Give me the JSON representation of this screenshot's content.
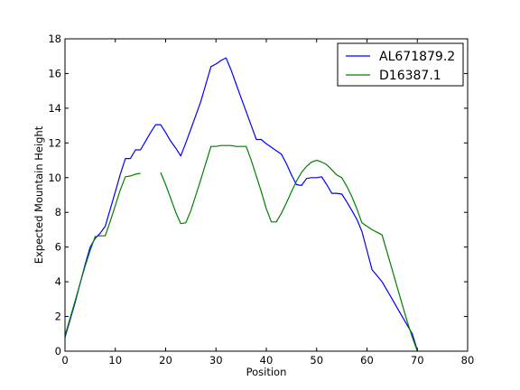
{
  "chart_data": {
    "type": "line",
    "xlabel": "Position",
    "ylabel": "Expected Mountain Height",
    "xlim": [
      0,
      80
    ],
    "ylim": [
      0,
      18
    ],
    "xticks": [
      "0",
      "10",
      "20",
      "30",
      "40",
      "50",
      "60",
      "70",
      "80"
    ],
    "yticks": [
      "0",
      "2",
      "4",
      "6",
      "8",
      "10",
      "12",
      "14",
      "16",
      "18"
    ],
    "grid": false,
    "legend_position": "top-right",
    "series": [
      {
        "name": "AL671879.2",
        "color": "#0000ff",
        "segments": [
          [
            [
              0,
              0.8
            ],
            [
              1,
              1.8
            ],
            [
              2,
              2.8
            ],
            [
              3,
              3.9
            ],
            [
              4,
              5.0
            ],
            [
              5,
              6.0
            ],
            [
              6,
              6.5
            ],
            [
              7,
              6.8
            ],
            [
              8,
              7.2
            ],
            [
              9,
              8.2
            ],
            [
              10,
              9.2
            ],
            [
              11,
              10.2
            ],
            [
              12,
              11.1
            ],
            [
              13,
              11.1
            ],
            [
              14,
              11.6
            ],
            [
              15,
              11.6
            ],
            [
              16,
              12.1
            ],
            [
              17,
              12.6
            ],
            [
              18,
              13.05
            ],
            [
              19,
              13.05
            ],
            [
              20,
              12.6
            ],
            [
              21,
              12.1
            ],
            [
              22,
              11.7
            ],
            [
              23,
              11.25
            ],
            [
              24,
              12.0
            ],
            [
              25,
              12.8
            ],
            [
              26,
              13.6
            ],
            [
              27,
              14.4
            ],
            [
              28,
              15.4
            ],
            [
              29,
              16.4
            ],
            [
              30,
              16.55
            ],
            [
              31,
              16.75
            ],
            [
              32,
              16.9
            ],
            [
              33,
              16.2
            ],
            [
              34,
              15.4
            ],
            [
              35,
              14.6
            ],
            [
              36,
              13.8
            ],
            [
              37,
              13.0
            ],
            [
              38,
              12.2
            ],
            [
              39,
              12.2
            ],
            [
              40,
              11.95
            ],
            [
              41,
              11.75
            ],
            [
              42,
              11.55
            ],
            [
              43,
              11.35
            ],
            [
              44,
              10.8
            ],
            [
              45,
              10.15
            ],
            [
              46,
              9.6
            ],
            [
              47,
              9.55
            ],
            [
              48,
              9.95
            ],
            [
              49,
              10.0
            ],
            [
              50,
              10.0
            ],
            [
              51,
              10.05
            ],
            [
              52,
              9.6
            ],
            [
              53,
              9.1
            ],
            [
              54,
              9.1
            ],
            [
              55,
              9.05
            ],
            [
              56,
              8.6
            ],
            [
              57,
              8.1
            ],
            [
              58,
              7.6
            ],
            [
              59,
              6.9
            ],
            [
              60,
              5.8
            ],
            [
              61,
              4.7
            ],
            [
              62,
              4.35
            ],
            [
              63,
              4.0
            ],
            [
              64,
              3.5
            ],
            [
              65,
              3.0
            ],
            [
              66,
              2.5
            ],
            [
              67,
              2.0
            ],
            [
              68,
              1.5
            ],
            [
              69,
              1.0
            ],
            [
              70,
              0.05
            ]
          ]
        ]
      },
      {
        "name": "D16387.1",
        "color": "#008000",
        "segments": [
          [
            [
              0,
              0.9
            ],
            [
              1,
              1.9
            ],
            [
              2,
              2.9
            ],
            [
              3,
              3.9
            ],
            [
              4,
              4.9
            ],
            [
              5,
              5.8
            ],
            [
              6,
              6.6
            ],
            [
              7,
              6.65
            ],
            [
              8,
              6.65
            ],
            [
              9,
              7.5
            ],
            [
              10,
              8.4
            ],
            [
              11,
              9.3
            ],
            [
              12,
              10.05
            ],
            [
              13,
              10.1
            ],
            [
              14,
              10.2
            ],
            [
              15,
              10.25
            ]
          ],
          [
            [
              19,
              10.3
            ],
            [
              20,
              9.6
            ],
            [
              21,
              8.8
            ],
            [
              22,
              8.0
            ],
            [
              23,
              7.35
            ],
            [
              24,
              7.4
            ],
            [
              25,
              8.1
            ],
            [
              26,
              9.0
            ],
            [
              27,
              9.9
            ],
            [
              28,
              10.85
            ],
            [
              29,
              11.8
            ],
            [
              30,
              11.8
            ],
            [
              31,
              11.85
            ],
            [
              32,
              11.85
            ],
            [
              33,
              11.85
            ],
            [
              34,
              11.8
            ],
            [
              35,
              11.8
            ],
            [
              36,
              11.8
            ],
            [
              37,
              11.0
            ],
            [
              38,
              10.1
            ],
            [
              39,
              9.2
            ],
            [
              40,
              8.2
            ],
            [
              41,
              7.45
            ],
            [
              42,
              7.45
            ],
            [
              43,
              7.95
            ],
            [
              44,
              8.55
            ],
            [
              45,
              9.2
            ],
            [
              46,
              9.8
            ],
            [
              47,
              10.3
            ],
            [
              48,
              10.65
            ],
            [
              49,
              10.9
            ],
            [
              50,
              11.0
            ],
            [
              51,
              10.9
            ],
            [
              52,
              10.75
            ],
            [
              53,
              10.45
            ],
            [
              54,
              10.15
            ],
            [
              55,
              10.0
            ],
            [
              56,
              9.5
            ],
            [
              57,
              8.9
            ],
            [
              58,
              8.2
            ],
            [
              59,
              7.4
            ],
            [
              60,
              7.2
            ],
            [
              61,
              7.0
            ],
            [
              62,
              6.85
            ],
            [
              63,
              6.7
            ],
            [
              64,
              5.7
            ],
            [
              65,
              4.7
            ],
            [
              66,
              3.7
            ],
            [
              67,
              2.7
            ],
            [
              68,
              1.7
            ],
            [
              69,
              0.8
            ],
            [
              70,
              0.0
            ]
          ]
        ]
      }
    ]
  }
}
